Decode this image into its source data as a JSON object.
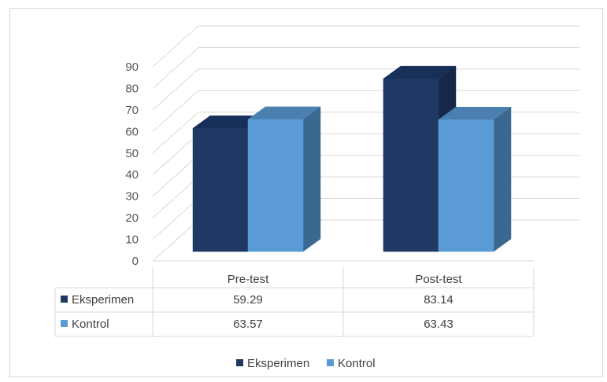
{
  "chart_data": {
    "type": "bar",
    "categories": [
      "Pre-test",
      "Post-test"
    ],
    "series": [
      {
        "name": "Eksperimen",
        "values": [
          59.29,
          83.14
        ],
        "color": "#1f3864",
        "side_color": "#162847",
        "top_color": "#17305a"
      },
      {
        "name": "Kontrol",
        "values": [
          63.57,
          63.43
        ],
        "color": "#5b9bd5",
        "side_color": "#3a6890",
        "top_color": "#4a7fb0"
      }
    ],
    "ylim": [
      0,
      90
    ],
    "yticks": [
      "0",
      "10",
      "20",
      "30",
      "40",
      "50",
      "60",
      "70",
      "80",
      "90"
    ],
    "grid": true,
    "legend_position": "bottom",
    "has_data_table": true,
    "style": "3d-clustered-column"
  }
}
